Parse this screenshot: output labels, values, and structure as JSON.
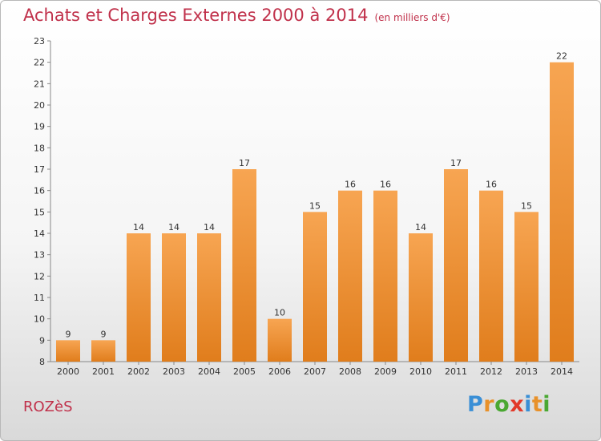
{
  "title": "Achats et Charges Externes 2000 à 2014",
  "unit": "(en milliers d'€)",
  "commune": "ROZèS",
  "logo": {
    "letters": [
      {
        "ch": "P",
        "color": "#3a8fd6"
      },
      {
        "ch": "r",
        "color": "#e8912a"
      },
      {
        "ch": "o",
        "color": "#4aa832"
      },
      {
        "ch": "x",
        "color": "#e23a2a"
      },
      {
        "ch": "i",
        "color": "#3a8fd6"
      },
      {
        "ch": "t",
        "color": "#e8912a"
      },
      {
        "ch": "i",
        "color": "#4aa832"
      }
    ]
  },
  "colors": {
    "bar_top": "#f7a552",
    "bar_bottom": "#e07d1c",
    "accent": "#c0304a"
  },
  "chart_data": {
    "type": "bar",
    "title": "Achats et Charges Externes 2000 à 2014",
    "categories": [
      "2000",
      "2001",
      "2002",
      "2003",
      "2004",
      "2005",
      "2006",
      "2007",
      "2008",
      "2009",
      "2010",
      "2011",
      "2012",
      "2013",
      "2014"
    ],
    "values": [
      9,
      9,
      14,
      14,
      14,
      17,
      10,
      15,
      16,
      16,
      14,
      17,
      16,
      15,
      22
    ],
    "ylim": [
      8,
      23
    ],
    "yticks": [
      8,
      9,
      10,
      11,
      12,
      13,
      14,
      15,
      16,
      17,
      18,
      19,
      20,
      21,
      22,
      23
    ],
    "grid": false,
    "xlabel": "",
    "ylabel": ""
  }
}
